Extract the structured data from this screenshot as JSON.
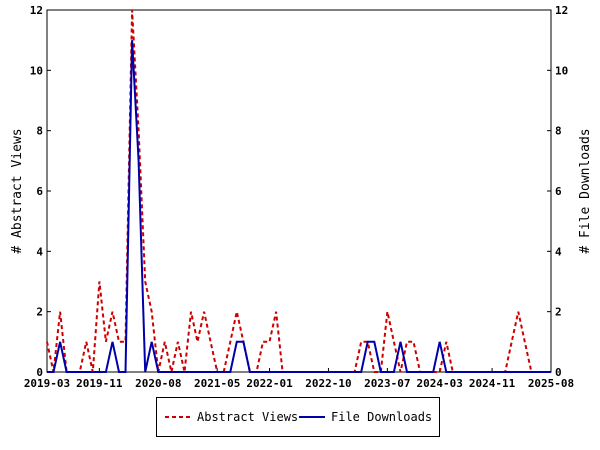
{
  "chart_data": {
    "type": "line",
    "x_start": "2019-03",
    "x_end": "2025-08",
    "x_ticks": [
      "2019-03",
      "2019-11",
      "2020-08",
      "2021-05",
      "2022-01",
      "2022-10",
      "2023-07",
      "2024-03",
      "2024-11",
      "2025-08"
    ],
    "ylabel_left": "# Abstract Views",
    "ylabel_right": "# File Downloads",
    "ylim": [
      0,
      12
    ],
    "y_ticks": [
      0,
      2,
      4,
      6,
      8,
      10,
      12
    ],
    "series": [
      {
        "name": "Abstract Views",
        "color": "#cc0000",
        "style": "dashed",
        "points": [
          [
            "2019-03",
            1
          ],
          [
            "2019-04",
            0
          ],
          [
            "2019-05",
            2
          ],
          [
            "2019-06",
            0
          ],
          [
            "2019-07",
            0
          ],
          [
            "2019-08",
            0
          ],
          [
            "2019-09",
            1
          ],
          [
            "2019-10",
            0
          ],
          [
            "2019-11",
            3
          ],
          [
            "2019-12",
            1
          ],
          [
            "2020-01",
            2
          ],
          [
            "2020-02",
            1
          ],
          [
            "2020-03",
            1
          ],
          [
            "2020-04",
            12
          ],
          [
            "2020-05",
            8
          ],
          [
            "2020-06",
            3
          ],
          [
            "2020-07",
            2
          ],
          [
            "2020-08",
            0
          ],
          [
            "2020-09",
            1
          ],
          [
            "2020-10",
            0
          ],
          [
            "2020-11",
            1
          ],
          [
            "2020-12",
            0
          ],
          [
            "2021-01",
            2
          ],
          [
            "2021-02",
            1
          ],
          [
            "2021-03",
            2
          ],
          [
            "2021-04",
            1
          ],
          [
            "2021-05",
            0
          ],
          [
            "2021-06",
            0
          ],
          [
            "2021-07",
            1
          ],
          [
            "2021-08",
            2
          ],
          [
            "2021-09",
            1
          ],
          [
            "2021-10",
            0
          ],
          [
            "2021-11",
            0
          ],
          [
            "2021-12",
            1
          ],
          [
            "2022-01",
            1
          ],
          [
            "2022-02",
            2
          ],
          [
            "2022-03",
            0
          ],
          [
            "2022-04",
            0
          ],
          [
            "2022-05",
            0
          ],
          [
            "2022-06",
            0
          ],
          [
            "2022-07",
            0
          ],
          [
            "2022-08",
            0
          ],
          [
            "2022-09",
            0
          ],
          [
            "2022-10",
            0
          ],
          [
            "2022-11",
            0
          ],
          [
            "2022-12",
            0
          ],
          [
            "2023-01",
            0
          ],
          [
            "2023-02",
            0
          ],
          [
            "2023-03",
            1
          ],
          [
            "2023-04",
            1
          ],
          [
            "2023-05",
            0
          ],
          [
            "2023-06",
            0
          ],
          [
            "2023-07",
            2
          ],
          [
            "2023-08",
            1
          ],
          [
            "2023-09",
            0
          ],
          [
            "2023-10",
            1
          ],
          [
            "2023-11",
            1
          ],
          [
            "2023-12",
            0
          ],
          [
            "2024-01",
            0
          ],
          [
            "2024-02",
            0
          ],
          [
            "2024-03",
            0
          ],
          [
            "2024-04",
            1
          ],
          [
            "2024-05",
            0
          ],
          [
            "2024-06",
            0
          ],
          [
            "2024-07",
            0
          ],
          [
            "2024-08",
            0
          ],
          [
            "2024-09",
            0
          ],
          [
            "2024-10",
            0
          ],
          [
            "2024-11",
            0
          ],
          [
            "2024-12",
            0
          ],
          [
            "2025-01",
            0
          ],
          [
            "2025-02",
            1
          ],
          [
            "2025-03",
            2
          ],
          [
            "2025-04",
            1
          ],
          [
            "2025-05",
            0
          ],
          [
            "2025-06",
            0
          ],
          [
            "2025-07",
            0
          ],
          [
            "2025-08",
            0
          ]
        ]
      },
      {
        "name": "File Downloads",
        "color": "#0000aa",
        "style": "solid",
        "points": [
          [
            "2019-03",
            0
          ],
          [
            "2019-04",
            0
          ],
          [
            "2019-05",
            1
          ],
          [
            "2019-06",
            0
          ],
          [
            "2019-07",
            0
          ],
          [
            "2019-08",
            0
          ],
          [
            "2019-09",
            0
          ],
          [
            "2019-10",
            0
          ],
          [
            "2019-11",
            0
          ],
          [
            "2019-12",
            0
          ],
          [
            "2020-01",
            1
          ],
          [
            "2020-02",
            0
          ],
          [
            "2020-03",
            0
          ],
          [
            "2020-04",
            11
          ],
          [
            "2020-05",
            7
          ],
          [
            "2020-06",
            0
          ],
          [
            "2020-07",
            1
          ],
          [
            "2020-08",
            0
          ],
          [
            "2020-09",
            0
          ],
          [
            "2020-10",
            0
          ],
          [
            "2020-11",
            0
          ],
          [
            "2020-12",
            0
          ],
          [
            "2021-01",
            0
          ],
          [
            "2021-02",
            0
          ],
          [
            "2021-03",
            0
          ],
          [
            "2021-04",
            0
          ],
          [
            "2021-05",
            0
          ],
          [
            "2021-06",
            0
          ],
          [
            "2021-07",
            0
          ],
          [
            "2021-08",
            1
          ],
          [
            "2021-09",
            1
          ],
          [
            "2021-10",
            0
          ],
          [
            "2021-11",
            0
          ],
          [
            "2021-12",
            0
          ],
          [
            "2022-01",
            0
          ],
          [
            "2022-02",
            0
          ],
          [
            "2022-03",
            0
          ],
          [
            "2022-04",
            0
          ],
          [
            "2022-05",
            0
          ],
          [
            "2022-06",
            0
          ],
          [
            "2022-07",
            0
          ],
          [
            "2022-08",
            0
          ],
          [
            "2022-09",
            0
          ],
          [
            "2022-10",
            0
          ],
          [
            "2022-11",
            0
          ],
          [
            "2022-12",
            0
          ],
          [
            "2023-01",
            0
          ],
          [
            "2023-02",
            0
          ],
          [
            "2023-03",
            0
          ],
          [
            "2023-04",
            1
          ],
          [
            "2023-05",
            1
          ],
          [
            "2023-06",
            0
          ],
          [
            "2023-07",
            0
          ],
          [
            "2023-08",
            0
          ],
          [
            "2023-09",
            1
          ],
          [
            "2023-10",
            0
          ],
          [
            "2023-11",
            0
          ],
          [
            "2023-12",
            0
          ],
          [
            "2024-01",
            0
          ],
          [
            "2024-02",
            0
          ],
          [
            "2024-03",
            1
          ],
          [
            "2024-04",
            0
          ],
          [
            "2024-05",
            0
          ],
          [
            "2024-06",
            0
          ],
          [
            "2024-07",
            0
          ],
          [
            "2024-08",
            0
          ],
          [
            "2024-09",
            0
          ],
          [
            "2024-10",
            0
          ],
          [
            "2024-11",
            0
          ],
          [
            "2024-12",
            0
          ],
          [
            "2025-01",
            0
          ],
          [
            "2025-02",
            0
          ],
          [
            "2025-03",
            0
          ],
          [
            "2025-04",
            0
          ],
          [
            "2025-05",
            0
          ],
          [
            "2025-06",
            0
          ],
          [
            "2025-07",
            0
          ],
          [
            "2025-08",
            0
          ]
        ]
      }
    ],
    "grid": false,
    "legend_position": "bottom"
  }
}
